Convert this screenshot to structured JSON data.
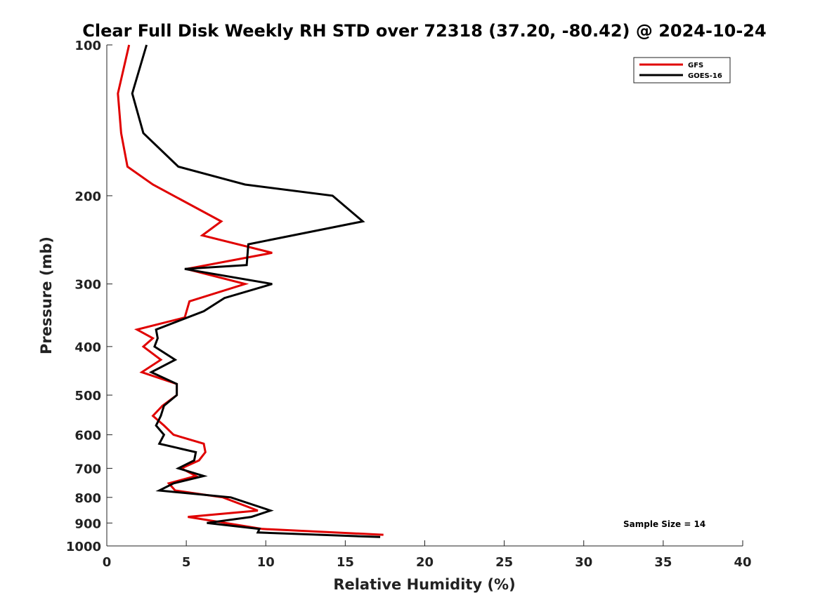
{
  "chart_data": {
    "type": "line",
    "title": "Clear Full Disk Weekly RH STD over 72318 (37.20, -80.42) @ 2024-10-24",
    "xlabel": "Relative Humidity (%)",
    "ylabel": "Pressure (mb)",
    "xlim": [
      0,
      40
    ],
    "ylim": [
      100,
      1000
    ],
    "y_scale": "log",
    "y_reversed": true,
    "x_ticks": [
      "0",
      "5",
      "10",
      "15",
      "20",
      "25",
      "30",
      "35",
      "40"
    ],
    "y_ticks": [
      "100",
      "200",
      "300",
      "400",
      "500",
      "600",
      "700",
      "800",
      "900",
      "1000"
    ],
    "legend_position": "top-right",
    "grid": false,
    "annotation": "Sample Size = 14",
    "series": [
      {
        "name": "GFS",
        "color": "#e00000",
        "points": [
          [
            1.4,
            100
          ],
          [
            0.7,
            125
          ],
          [
            0.9,
            150
          ],
          [
            1.3,
            175
          ],
          [
            2.9,
            190
          ],
          [
            7.2,
            225
          ],
          [
            6.0,
            240
          ],
          [
            10.4,
            260
          ],
          [
            5.0,
            280
          ],
          [
            8.7,
            300
          ],
          [
            5.2,
            325
          ],
          [
            4.9,
            350
          ],
          [
            1.9,
            370
          ],
          [
            2.9,
            385
          ],
          [
            2.3,
            400
          ],
          [
            3.4,
            425
          ],
          [
            2.2,
            450
          ],
          [
            4.4,
            475
          ],
          [
            4.4,
            500
          ],
          [
            3.5,
            525
          ],
          [
            2.9,
            550
          ],
          [
            3.6,
            575
          ],
          [
            4.2,
            600
          ],
          [
            6.1,
            625
          ],
          [
            6.2,
            650
          ],
          [
            5.8,
            675
          ],
          [
            4.7,
            700
          ],
          [
            5.6,
            725
          ],
          [
            3.9,
            750
          ],
          [
            4.3,
            775
          ],
          [
            7.3,
            800
          ],
          [
            9.5,
            850
          ],
          [
            5.1,
            875
          ],
          [
            9.8,
            925
          ],
          [
            17.4,
            950
          ]
        ]
      },
      {
        "name": "GOES-16",
        "color": "#000000",
        "points": [
          [
            2.5,
            100
          ],
          [
            1.6,
            125
          ],
          [
            2.3,
            150
          ],
          [
            4.5,
            175
          ],
          [
            8.7,
            190
          ],
          [
            14.2,
            200
          ],
          [
            16.1,
            225
          ],
          [
            8.9,
            250
          ],
          [
            8.8,
            275
          ],
          [
            4.9,
            280
          ],
          [
            10.4,
            300
          ],
          [
            7.4,
            320
          ],
          [
            6.1,
            340
          ],
          [
            3.1,
            370
          ],
          [
            3.2,
            385
          ],
          [
            3.0,
            400
          ],
          [
            4.3,
            425
          ],
          [
            2.8,
            450
          ],
          [
            4.4,
            475
          ],
          [
            4.4,
            500
          ],
          [
            3.6,
            525
          ],
          [
            3.4,
            550
          ],
          [
            3.1,
            575
          ],
          [
            3.6,
            600
          ],
          [
            3.3,
            625
          ],
          [
            5.6,
            650
          ],
          [
            5.5,
            675
          ],
          [
            4.5,
            700
          ],
          [
            6.1,
            725
          ],
          [
            4.2,
            750
          ],
          [
            3.3,
            775
          ],
          [
            7.8,
            800
          ],
          [
            10.3,
            850
          ],
          [
            9.1,
            875
          ],
          [
            6.3,
            900
          ],
          [
            9.6,
            925
          ],
          [
            9.5,
            940
          ],
          [
            17.2,
            960
          ]
        ]
      }
    ]
  }
}
